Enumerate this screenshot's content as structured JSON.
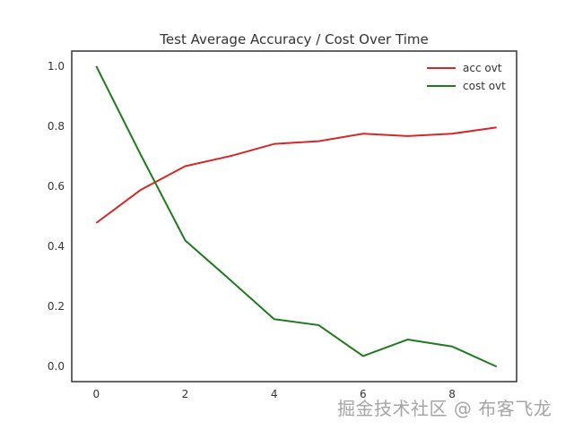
{
  "chart_data": {
    "type": "line",
    "title": "Test Average Accuracy / Cost Over Time",
    "xlabel": "",
    "ylabel": "",
    "x": [
      0,
      1,
      2,
      3,
      4,
      5,
      6,
      7,
      8,
      9
    ],
    "xlim": [
      -0.55,
      9.45
    ],
    "ylim": [
      -0.05,
      1.05
    ],
    "xticks": [
      0,
      2,
      4,
      6,
      8
    ],
    "yticks": [
      0.0,
      0.2,
      0.4,
      0.6,
      0.8,
      1.0
    ],
    "xtick_labels": [
      "0",
      "2",
      "4",
      "6",
      "8"
    ],
    "ytick_labels": [
      "0.0",
      "0.2",
      "0.4",
      "0.6",
      "0.8",
      "1.0"
    ],
    "grid": false,
    "legend_position": "top-right",
    "series": [
      {
        "name": "acc ovt",
        "color": "#d62728",
        "values": [
          0.478,
          0.588,
          0.667,
          0.7,
          0.741,
          0.75,
          0.775,
          0.767,
          0.775,
          0.796
        ]
      },
      {
        "name": "cost ovt",
        "color": "#1f7a1f",
        "values": [
          1.0,
          0.705,
          0.42,
          0.29,
          0.158,
          0.138,
          0.035,
          0.09,
          0.067,
          0.0
        ]
      }
    ]
  },
  "watermark": "掘金技术社区 @ 布客飞龙"
}
